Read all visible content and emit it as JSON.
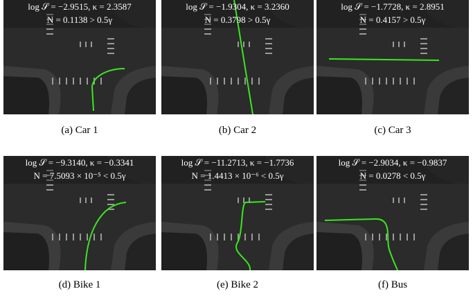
{
  "panels": [
    {
      "caption": "(a) Car 1",
      "line1": "log 𝒮 = −2.9515, κ = 2.3587",
      "line2": "N = 0.1138 > 0.5γ"
    },
    {
      "caption": "(b) Car 2",
      "line1": "log 𝒮 = −1.9304, κ = 3.2360",
      "line2": "N = 0.3798 > 0.5γ"
    },
    {
      "caption": "(c) Car 3",
      "line1": "log 𝒮 = −1.7728, κ = 2.8951",
      "line2": "N = 0.4157 > 0.5γ"
    },
    {
      "caption": "(d) Bike 1",
      "line1": "log 𝒮 = −9.3140, κ = −0.3341",
      "line2": "N = 7.5093 × 10⁻⁵ < 0.5γ"
    },
    {
      "caption": "(e) Bike 2",
      "line1": "log 𝒮 = −11.2713, κ = −1.7736",
      "line2": "N = 1.4413 × 10⁻⁶ < 0.5γ"
    },
    {
      "caption": "(f) Bus",
      "line1": "log 𝒮 = −2.9034, κ = −0.9837",
      "line2": "N = 0.0278 < 0.5γ"
    }
  ]
}
